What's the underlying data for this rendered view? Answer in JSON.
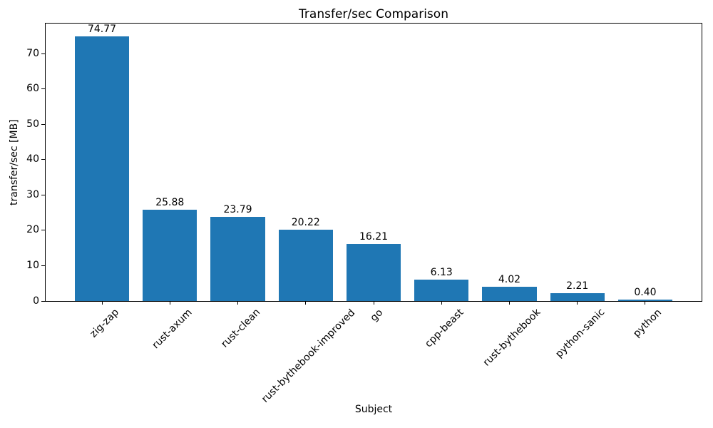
{
  "chart_data": {
    "type": "bar",
    "title": "Transfer/sec Comparison",
    "xlabel": "Subject",
    "ylabel": "transfer/sec [MB]",
    "categories": [
      "zig-zap",
      "rust-axum",
      "rust-clean",
      "rust-bythebook-improved",
      "go",
      "cpp-beast",
      "rust-bythebook",
      "python-sanic",
      "python"
    ],
    "values": [
      74.77,
      25.88,
      23.79,
      20.22,
      16.21,
      6.13,
      4.02,
      2.21,
      0.4
    ],
    "bar_labels": [
      "74.77",
      "25.88",
      "23.79",
      "20.22",
      "16.21",
      "6.13",
      "4.02",
      "2.21",
      "0.40"
    ],
    "yticks": [
      0,
      10,
      20,
      30,
      40,
      50,
      60,
      70
    ],
    "ylim": [
      0,
      78.5
    ],
    "xlim": [
      -0.84,
      8.84
    ],
    "bar_width": 0.8,
    "bar_color": "#1f77b4",
    "grid": false,
    "legend": "none",
    "xtick_rotation_deg": 45
  }
}
